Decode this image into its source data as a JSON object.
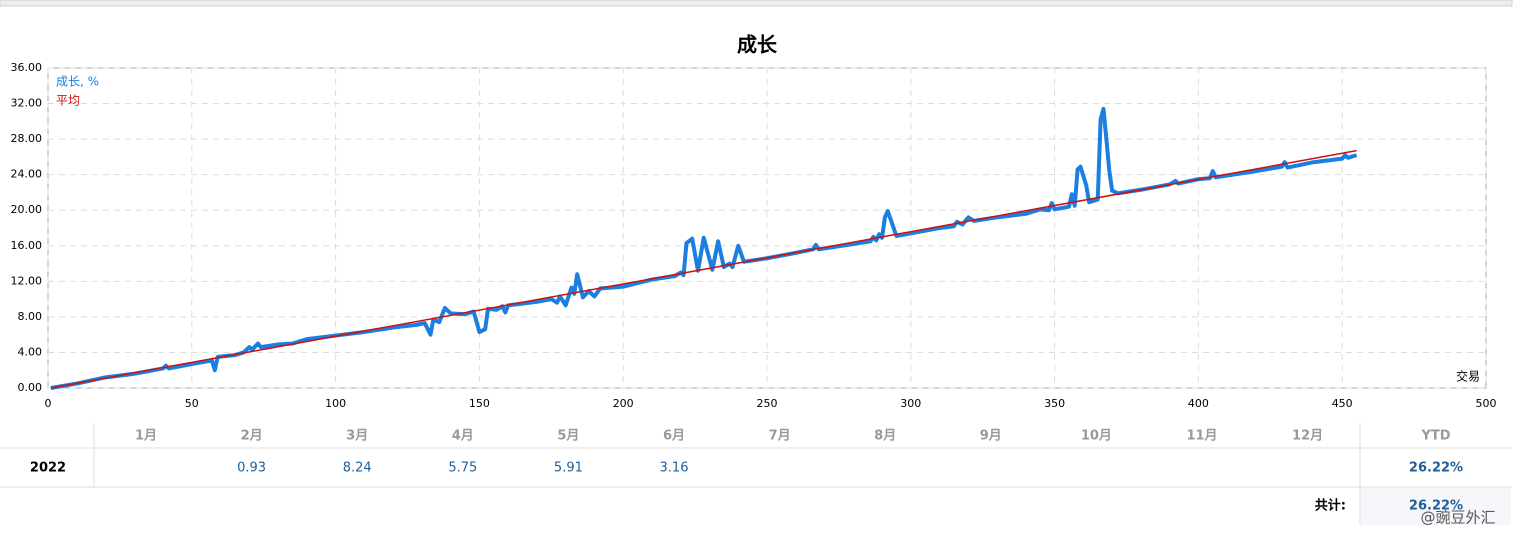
{
  "chart_data": {
    "type": "line",
    "title": "成长",
    "x_label": "交易",
    "xlim": [
      0,
      500
    ],
    "xticks": [
      0,
      50,
      100,
      150,
      200,
      250,
      300,
      350,
      400,
      450,
      500
    ],
    "ylim": [
      0,
      36
    ],
    "yticks": [
      {
        "value": 0,
        "label": "0.00"
      },
      {
        "value": 4,
        "label": "4.00"
      },
      {
        "value": 8,
        "label": "8.00"
      },
      {
        "value": 12,
        "label": "12.00"
      },
      {
        "value": 16,
        "label": "16.00"
      },
      {
        "value": 20,
        "label": "20.00"
      },
      {
        "value": 24,
        "label": "24.00"
      },
      {
        "value": 28,
        "label": "28.00"
      },
      {
        "value": 32,
        "label": "32.00"
      },
      {
        "value": 36,
        "label": "36.00"
      }
    ],
    "grid": true,
    "series": [
      {
        "name": "成长, %",
        "color": "#1a7fe0",
        "x": [
          1,
          10,
          20,
          30,
          40,
          41,
          42,
          50,
          57,
          58,
          59,
          65,
          68,
          70,
          71,
          73,
          74,
          80,
          85,
          90,
          100,
          110,
          120,
          128,
          131,
          133,
          134,
          136,
          138,
          140,
          145,
          148,
          150,
          152,
          153,
          156,
          158,
          159,
          160,
          170,
          175,
          177,
          178,
          180,
          182,
          183,
          184,
          186,
          188,
          190,
          192,
          200,
          210,
          218,
          220,
          221,
          222,
          224,
          226,
          228,
          231,
          233,
          235,
          237,
          238,
          240,
          242,
          250,
          260,
          266,
          267,
          268,
          280,
          286,
          287,
          288,
          289,
          290,
          291,
          292,
          295,
          300,
          310,
          315,
          316,
          318,
          320,
          322,
          330,
          340,
          345,
          348,
          349,
          350,
          355,
          356,
          357,
          358,
          359,
          361,
          362,
          364,
          365,
          366,
          367,
          368,
          369,
          370,
          372,
          380,
          390,
          392,
          393,
          400,
          404,
          405,
          406,
          420,
          429,
          430,
          431,
          440,
          450,
          451,
          452,
          455
        ],
        "values": [
          0,
          0.5,
          1.2,
          1.6,
          2.2,
          2.5,
          2.2,
          2.7,
          3.1,
          2.0,
          3.5,
          3.7,
          4.0,
          4.6,
          4.3,
          5.0,
          4.6,
          4.9,
          5.0,
          5.5,
          5.9,
          6.3,
          6.8,
          7.1,
          7.3,
          6.0,
          7.7,
          7.4,
          9.0,
          8.4,
          8.3,
          8.6,
          6.3,
          6.6,
          8.9,
          8.8,
          9.2,
          8.5,
          9.3,
          9.7,
          10.0,
          9.6,
          10.3,
          9.3,
          11.3,
          10.6,
          12.8,
          10.2,
          10.9,
          10.3,
          11.2,
          11.4,
          12.2,
          12.6,
          13.0,
          12.7,
          16.3,
          16.8,
          13.2,
          16.9,
          13.3,
          16.5,
          13.6,
          14.0,
          13.6,
          16.0,
          14.2,
          14.6,
          15.2,
          15.6,
          16.1,
          15.6,
          16.2,
          16.5,
          17.0,
          16.6,
          17.3,
          16.9,
          19.2,
          19.9,
          17.1,
          17.4,
          18.0,
          18.2,
          18.7,
          18.4,
          19.2,
          18.8,
          19.2,
          19.6,
          20.1,
          20.0,
          20.8,
          20.1,
          20.4,
          21.8,
          20.5,
          24.6,
          24.9,
          22.8,
          20.9,
          21.1,
          21.2,
          30.2,
          31.4,
          28.0,
          24.5,
          22.2,
          21.9,
          22.3,
          22.9,
          23.3,
          23.0,
          23.5,
          23.6,
          24.4,
          23.7,
          24.4,
          24.9,
          25.4,
          24.8,
          25.4,
          25.8,
          26.2,
          25.9,
          26.2
        ]
      },
      {
        "name": "平均",
        "color": "#cc1111",
        "x": [
          1,
          455
        ],
        "values": [
          0,
          26.7
        ]
      }
    ]
  },
  "table": {
    "header": [
      "1月",
      "2月",
      "3月",
      "4月",
      "5月",
      "6月",
      "7月",
      "8月",
      "9月",
      "10月",
      "11月",
      "12月",
      "YTD"
    ],
    "rows": [
      [
        "2022",
        null,
        "0.93",
        "8.24",
        "5.75",
        "5.91",
        "3.16",
        null,
        null,
        null,
        null,
        null,
        null,
        "26.22%"
      ]
    ],
    "total_label": "共计:",
    "total": "26.22%"
  },
  "watermark": "@豌豆外汇"
}
